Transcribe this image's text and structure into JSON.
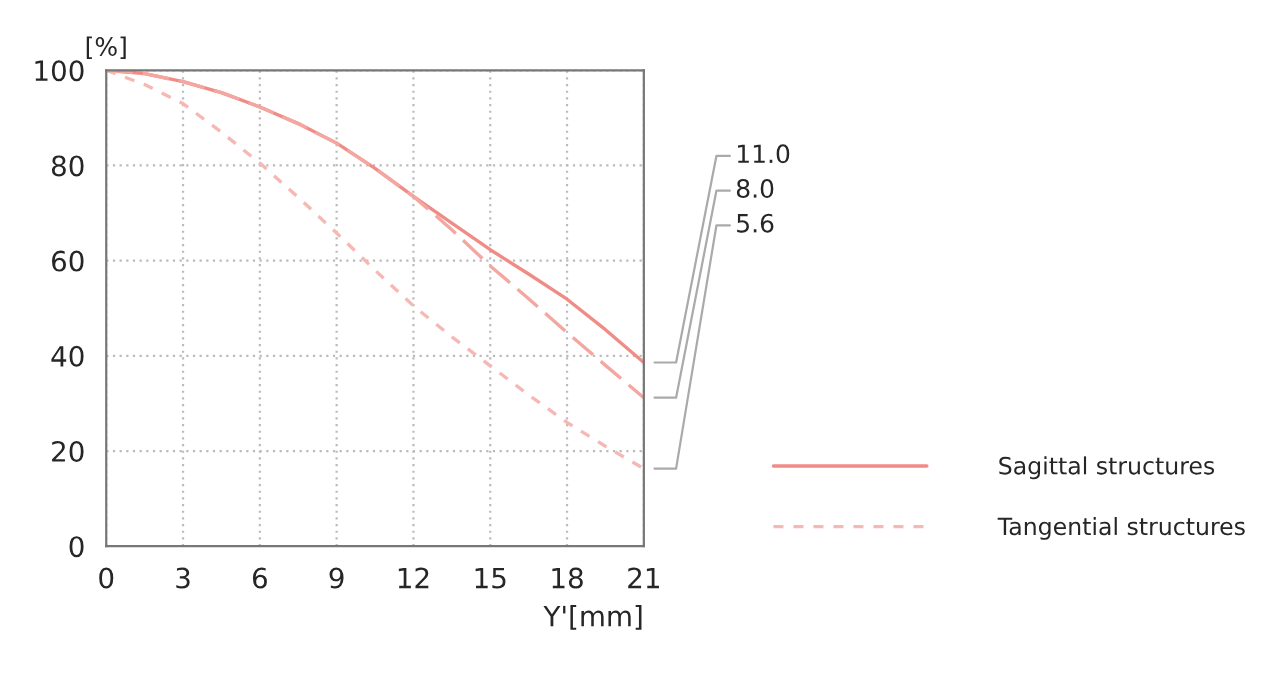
{
  "chart_data": {
    "type": "line",
    "ylabel": "[%]",
    "xlabel": "Y'[mm]",
    "x": [
      0,
      1.5,
      3,
      4.5,
      6,
      7.5,
      9,
      10.5,
      12,
      13.5,
      15,
      16.5,
      18,
      19.5,
      21
    ],
    "series": [
      {
        "name": "11.0",
        "color": "#f08c86",
        "line_style": "solid",
        "values": [
          100,
          99.3,
          97.6,
          95.3,
          92.3,
          88.8,
          84.7,
          79.4,
          73.5,
          67.9,
          62.3,
          57.2,
          51.9,
          45.5,
          38.6
        ]
      },
      {
        "name": "8.0",
        "color": "#f4a6a0",
        "line_style": "dashed",
        "values": [
          100,
          99.3,
          97.6,
          95.3,
          92.3,
          88.8,
          84.7,
          79.4,
          73.5,
          66.5,
          58.9,
          52,
          44.9,
          38,
          31.2
        ]
      },
      {
        "name": "5.6",
        "color": "#f6b8b3",
        "line_style": "dotted",
        "values": [
          100,
          97,
          93,
          87,
          80.5,
          73.3,
          65.8,
          58,
          50.5,
          44,
          37.9,
          31.8,
          26,
          21,
          16.3
        ]
      }
    ],
    "xlim": [
      0,
      21
    ],
    "ylim": [
      0,
      100
    ],
    "xticks": [
      0,
      3,
      6,
      9,
      12,
      15,
      18,
      21
    ],
    "yticks": [
      0,
      20,
      40,
      60,
      80,
      100
    ],
    "grid": true,
    "marker": "none",
    "annotations": [
      "Sagittal structures",
      "Tangential structures"
    ]
  }
}
